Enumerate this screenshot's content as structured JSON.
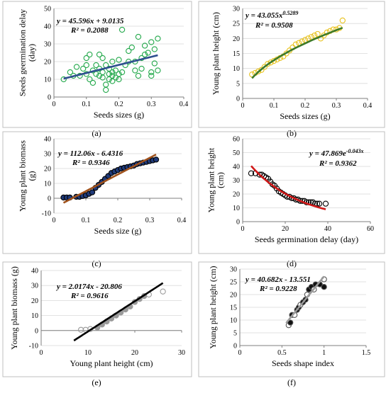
{
  "colors": {
    "green": "#22a84a",
    "navy": "#2f4f8f",
    "gold": "#e8c21e",
    "olive": "#3d7a2a",
    "darkblue": "#1f3a7a",
    "brown": "#a0521c",
    "red": "#d01818",
    "black": "#000000",
    "gray": "#9a9a9a"
  },
  "chart_data": [
    {
      "id": "a",
      "type": "scatter",
      "panel_label": "(a)",
      "xlabel": "Seeds sizes (g)",
      "ylabel": [
        "Seeds geermination delay",
        "(day)"
      ],
      "xlim": [
        0,
        0.4
      ],
      "ylim": [
        0,
        50
      ],
      "xticks": [
        0,
        0.1,
        0.2,
        0.3,
        0.4
      ],
      "xtick_labels": [
        "0",
        "0.1",
        "0.2",
        "0.3",
        "0.4"
      ],
      "yticks": [
        0,
        10,
        20,
        30,
        40,
        50
      ],
      "ytick_labels": [
        "0",
        "10",
        "20",
        "30",
        "40",
        "50"
      ],
      "gridlines": true,
      "equation": [
        "y = 45.596x + 9.0135",
        "R² = 0.2088"
      ],
      "points": [
        [
          0.03,
          10
        ],
        [
          0.05,
          14
        ],
        [
          0.06,
          12
        ],
        [
          0.07,
          17
        ],
        [
          0.08,
          12
        ],
        [
          0.09,
          16
        ],
        [
          0.1,
          13
        ],
        [
          0.1,
          18
        ],
        [
          0.1,
          22
        ],
        [
          0.11,
          24
        ],
        [
          0.11,
          10
        ],
        [
          0.12,
          8
        ],
        [
          0.12,
          15
        ],
        [
          0.13,
          18
        ],
        [
          0.13,
          13
        ],
        [
          0.14,
          24
        ],
        [
          0.14,
          12
        ],
        [
          0.14,
          16
        ],
        [
          0.15,
          11
        ],
        [
          0.15,
          14
        ],
        [
          0.15,
          22
        ],
        [
          0.16,
          7
        ],
        [
          0.16,
          4
        ],
        [
          0.16,
          18
        ],
        [
          0.17,
          16
        ],
        [
          0.17,
          10
        ],
        [
          0.17,
          13
        ],
        [
          0.18,
          12
        ],
        [
          0.18,
          20
        ],
        [
          0.18,
          14
        ],
        [
          0.18,
          9
        ],
        [
          0.19,
          11
        ],
        [
          0.19,
          15
        ],
        [
          0.2,
          13
        ],
        [
          0.2,
          21
        ],
        [
          0.2,
          10
        ],
        [
          0.21,
          38
        ],
        [
          0.21,
          14
        ],
        [
          0.22,
          18
        ],
        [
          0.23,
          20
        ],
        [
          0.23,
          26
        ],
        [
          0.24,
          28
        ],
        [
          0.25,
          15
        ],
        [
          0.25,
          20
        ],
        [
          0.26,
          12
        ],
        [
          0.26,
          34
        ],
        [
          0.27,
          22
        ],
        [
          0.27,
          16
        ],
        [
          0.28,
          29
        ],
        [
          0.28,
          24
        ],
        [
          0.29,
          25
        ],
        [
          0.3,
          14
        ],
        [
          0.3,
          31
        ],
        [
          0.3,
          12
        ],
        [
          0.31,
          19
        ],
        [
          0.31,
          27
        ],
        [
          0.32,
          33
        ],
        [
          0.32,
          15
        ]
      ],
      "fit": {
        "kind": "linear",
        "a": 45.596,
        "b": 9.0135,
        "x0": 0.03,
        "x1": 0.32
      },
      "marker": "open-circle",
      "marker_color": "#22a84a",
      "line_color": "#2f4f8f"
    },
    {
      "id": "b",
      "type": "scatter",
      "panel_label": "(b)",
      "xlabel": "Seeds sizes (g)",
      "ylabel": [
        "Young plant height (cm)"
      ],
      "xlim": [
        0,
        0.4
      ],
      "ylim": [
        0,
        30
      ],
      "xticks": [
        0,
        0.1,
        0.2,
        0.3,
        0.4
      ],
      "xtick_labels": [
        "0",
        "0.1",
        "0.2",
        "0.3",
        "0.4"
      ],
      "yticks": [
        0,
        5,
        10,
        15,
        20,
        25,
        30
      ],
      "ytick_labels": [
        "0",
        "5",
        "10",
        "15",
        "20",
        "25",
        "30"
      ],
      "gridlines": true,
      "equation": [
        "y = 43.055x",
        "0.5289",
        "R² = 0.9508"
      ],
      "points": [
        [
          0.03,
          8
        ],
        [
          0.04,
          8.5
        ],
        [
          0.05,
          9
        ],
        [
          0.06,
          9.5
        ],
        [
          0.07,
          10.5
        ],
        [
          0.08,
          11.5
        ],
        [
          0.09,
          12
        ],
        [
          0.1,
          12.5
        ],
        [
          0.11,
          13
        ],
        [
          0.12,
          13.5
        ],
        [
          0.13,
          14
        ],
        [
          0.14,
          15
        ],
        [
          0.15,
          16
        ],
        [
          0.16,
          17
        ],
        [
          0.17,
          18
        ],
        [
          0.18,
          18.5
        ],
        [
          0.19,
          19
        ],
        [
          0.2,
          19.5
        ],
        [
          0.21,
          20
        ],
        [
          0.22,
          20.5
        ],
        [
          0.23,
          21
        ],
        [
          0.24,
          21.5
        ],
        [
          0.25,
          20
        ],
        [
          0.26,
          21
        ],
        [
          0.27,
          22
        ],
        [
          0.28,
          22.5
        ],
        [
          0.29,
          23
        ],
        [
          0.3,
          23
        ],
        [
          0.31,
          23.5
        ],
        [
          0.32,
          26
        ]
      ],
      "fit": {
        "kind": "power",
        "a": 43.055,
        "b": 0.5289,
        "x0": 0.03,
        "x1": 0.32
      },
      "marker": "open-circle",
      "marker_color": "#e8c21e",
      "line_color": "#3d7a2a"
    },
    {
      "id": "c",
      "type": "scatter",
      "panel_label": "(c)",
      "xlabel": "Seeds size (g)",
      "ylabel": [
        "Young plant biomass",
        "(g)"
      ],
      "xlim": [
        0,
        0.4
      ],
      "ylim": [
        -10,
        40
      ],
      "xticks": [
        0,
        0.1,
        0.2,
        0.3,
        0.4
      ],
      "xtick_labels": [
        "0",
        "0.1",
        "0.2",
        "0.3",
        "0.4"
      ],
      "yticks": [
        -10,
        0,
        10,
        20,
        30,
        40
      ],
      "ytick_labels": [
        "-10",
        "0",
        "10",
        "20",
        "30",
        "40"
      ],
      "gridlines": true,
      "equation": [
        "y = 112.06x - 6.4316",
        "R² = 0.9346"
      ],
      "points": [
        [
          0.03,
          0.5
        ],
        [
          0.04,
          0.5
        ],
        [
          0.05,
          0.5
        ],
        [
          0.07,
          1
        ],
        [
          0.08,
          1
        ],
        [
          0.09,
          1.5
        ],
        [
          0.1,
          2
        ],
        [
          0.11,
          3
        ],
        [
          0.12,
          4
        ],
        [
          0.13,
          7
        ],
        [
          0.14,
          9
        ],
        [
          0.15,
          11
        ],
        [
          0.16,
          13
        ],
        [
          0.17,
          15
        ],
        [
          0.18,
          17
        ],
        [
          0.19,
          18
        ],
        [
          0.2,
          19
        ],
        [
          0.21,
          20
        ],
        [
          0.22,
          20.5
        ],
        [
          0.23,
          21
        ],
        [
          0.24,
          21.5
        ],
        [
          0.25,
          22
        ],
        [
          0.26,
          23
        ],
        [
          0.27,
          23.5
        ],
        [
          0.28,
          24
        ],
        [
          0.29,
          24.5
        ],
        [
          0.3,
          25
        ],
        [
          0.31,
          25.5
        ],
        [
          0.32,
          26
        ]
      ],
      "fit": {
        "kind": "linear",
        "a": 112.06,
        "b": -6.4316,
        "x0": 0.03,
        "x1": 0.32
      },
      "marker": "filled-circle",
      "marker_color": "#1f3a7a",
      "line_color": "#a0521c"
    },
    {
      "id": "d",
      "type": "scatter",
      "panel_label": "(d)",
      "xlabel": "Seeds germination delay (day)",
      "ylabel": [
        "Young plant height",
        "(cm)"
      ],
      "xlim": [
        0,
        60
      ],
      "ylim": [
        0,
        60
      ],
      "xticks": [
        0,
        20,
        40,
        60
      ],
      "xtick_labels": [
        "0",
        "20",
        "40",
        "60"
      ],
      "yticks": [
        0,
        10,
        20,
        30,
        40,
        50,
        60
      ],
      "ytick_labels": [
        "0",
        "10",
        "20",
        "30",
        "40",
        "50",
        "60"
      ],
      "gridlines": true,
      "equation": [
        "y = 47.869e",
        "-0.043x",
        "R² = 0.9362"
      ],
      "points": [
        [
          4,
          35
        ],
        [
          6,
          35
        ],
        [
          8,
          34
        ],
        [
          9,
          34
        ],
        [
          10,
          33
        ],
        [
          11,
          32
        ],
        [
          12,
          31
        ],
        [
          13,
          29
        ],
        [
          14,
          27
        ],
        [
          15,
          26
        ],
        [
          16,
          24
        ],
        [
          17,
          22
        ],
        [
          18,
          21
        ],
        [
          19,
          20
        ],
        [
          20,
          19
        ],
        [
          21,
          18
        ],
        [
          22,
          18
        ],
        [
          23,
          17
        ],
        [
          24,
          17
        ],
        [
          25,
          16
        ],
        [
          26,
          16
        ],
        [
          27,
          15
        ],
        [
          28,
          15
        ],
        [
          29,
          15
        ],
        [
          30,
          14
        ],
        [
          31,
          14
        ],
        [
          32,
          14
        ],
        [
          33,
          14
        ],
        [
          34,
          13
        ],
        [
          35,
          13
        ],
        [
          36,
          13
        ],
        [
          39,
          13
        ]
      ],
      "fit": {
        "kind": "exp",
        "a": 47.869,
        "b": -0.043,
        "x0": 4,
        "x1": 39
      },
      "marker": "open-circle",
      "marker_color": "#000000",
      "line_color": "#d01818"
    },
    {
      "id": "e",
      "type": "scatter",
      "panel_label": "(e)",
      "xlabel": "Young plant height (cm)",
      "ylabel": [
        "Young plant biomass (g)"
      ],
      "xlim": [
        0,
        30
      ],
      "ylim": [
        -10,
        40
      ],
      "xticks": [
        0,
        10,
        20,
        30
      ],
      "xtick_labels": [
        "0",
        "10",
        "20",
        "30"
      ],
      "yticks": [
        -10,
        0,
        10,
        20,
        30,
        40
      ],
      "ytick_labels": [
        "-10",
        "0",
        "10",
        "20",
        "30",
        "40"
      ],
      "gridlines": true,
      "equation": [
        "y = 2.0174x - 20.806",
        "R² = 0.9616"
      ],
      "points": [
        [
          8.5,
          0.5
        ],
        [
          9.5,
          0.5
        ],
        [
          10.5,
          1
        ],
        [
          12,
          2
        ],
        [
          13,
          4
        ],
        [
          14,
          6
        ],
        [
          15,
          8
        ],
        [
          16,
          10
        ],
        [
          17,
          12
        ],
        [
          18,
          14
        ],
        [
          19,
          16
        ],
        [
          20,
          19
        ],
        [
          21,
          21
        ],
        [
          22,
          23
        ],
        [
          23,
          24
        ],
        [
          26,
          26
        ]
      ],
      "fit": {
        "kind": "linear",
        "a": 2.0174,
        "b": -20.806,
        "x0": 7,
        "x1": 26
      },
      "marker": "open-circle",
      "marker_color": "#9a9a9a",
      "line_color": "#000000"
    },
    {
      "id": "f",
      "type": "scatter",
      "panel_label": "(f)",
      "xlabel": "Seeds shape index",
      "ylabel": [
        "Young plant height (cm)"
      ],
      "xlim": [
        0,
        1.5
      ],
      "ylim": [
        0,
        30
      ],
      "xticks": [
        0,
        0.5,
        1,
        1.5
      ],
      "xtick_labels": [
        "0",
        "0.5",
        "1",
        "1.5"
      ],
      "yticks": [
        0,
        5,
        10,
        15,
        20,
        25,
        30
      ],
      "ytick_labels": [
        "0",
        "5",
        "10",
        "15",
        "20",
        "25",
        "30"
      ],
      "gridlines": true,
      "equation": [
        "y = 40.682x - 13.551",
        "R² = 0.9228"
      ],
      "points": [
        [
          0.58,
          8
        ],
        [
          0.6,
          9
        ],
        [
          0.62,
          12
        ],
        [
          0.65,
          12
        ],
        [
          0.68,
          14
        ],
        [
          0.7,
          15
        ],
        [
          0.72,
          16
        ],
        [
          0.75,
          17
        ],
        [
          0.78,
          18
        ],
        [
          0.8,
          20
        ],
        [
          0.82,
          22
        ],
        [
          0.85,
          23
        ],
        [
          0.88,
          22
        ],
        [
          0.9,
          24
        ],
        [
          0.95,
          24
        ],
        [
          1.0,
          26
        ],
        [
          1.0,
          23
        ]
      ],
      "fit": {
        "kind": "linear",
        "a": 40.682,
        "b": -13.551,
        "x0": 0.55,
        "x1": 1.0
      },
      "marker": "mixed-circle",
      "marker_color": "#000000",
      "line_color": "#9a9a9a"
    }
  ]
}
